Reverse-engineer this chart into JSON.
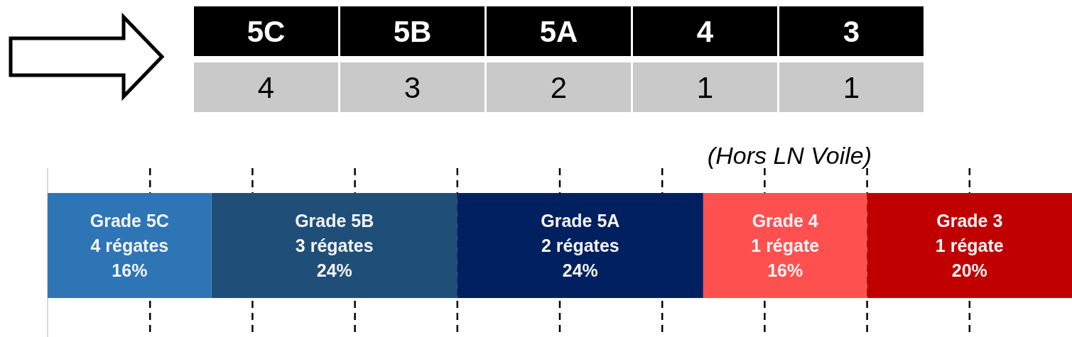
{
  "chart_data": {
    "type": "bar",
    "orientation": "horizontal",
    "stacked": true,
    "categories": [
      null
    ],
    "series": [
      {
        "name": "Grade 5C",
        "color": "#2e75b6",
        "values": [
          16
        ],
        "value_labels": [
          "4 régates\n16%"
        ]
      },
      {
        "name": "Grade 5B",
        "color": "#1f4e79",
        "values": [
          24
        ],
        "value_labels": [
          "3 régates\n24%"
        ]
      },
      {
        "name": "Grade 5A",
        "color": "#002060",
        "values": [
          24
        ],
        "value_labels": [
          "2 régates\n24%"
        ]
      },
      {
        "name": "Grade 4",
        "color": "#ff5050",
        "values": [
          16
        ],
        "value_labels": [
          "1 régate\n16%"
        ]
      },
      {
        "name": "Grade 3",
        "color": "#c00000",
        "values": [
          20
        ],
        "value_labels": [
          "1 régate\n20%"
        ]
      }
    ],
    "xlim": [
      0,
      100
    ],
    "xticks": [
      {
        "value": 10,
        "label": null
      },
      {
        "value": 20,
        "label": null
      },
      {
        "value": 30,
        "label": null
      },
      {
        "value": 40,
        "label": null
      },
      {
        "value": 50,
        "label": null
      },
      {
        "value": 60,
        "label": null
      },
      {
        "value": 70,
        "label": null
      },
      {
        "value": 80,
        "label": null
      },
      {
        "value": 90,
        "label": null
      }
    ],
    "grid": "x",
    "annotations": [
      "5C",
      "5B",
      "5A",
      "4",
      "3",
      "4",
      "3",
      "2",
      "1",
      "1",
      "(Hors LN Voile)"
    ]
  }
}
